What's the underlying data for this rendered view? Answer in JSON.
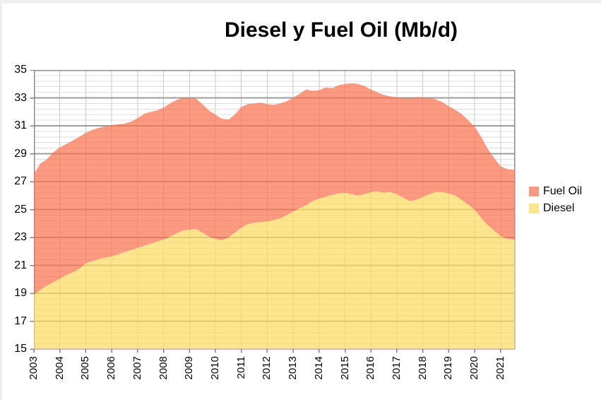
{
  "title": "Diesel y Fuel Oil (Mb/d)",
  "legend": {
    "items": [
      {
        "label": "Fuel Oil",
        "color": "#F89A80"
      },
      {
        "label": "Diesel",
        "color": "#FDE58D"
      }
    ]
  },
  "axes": {
    "y_ticks": [
      "35",
      "33",
      "31",
      "29",
      "27",
      "25",
      "23",
      "21",
      "19",
      "17",
      "15"
    ],
    "x_ticks": [
      "2003",
      "2004",
      "2005",
      "2006",
      "2007",
      "2008",
      "2009",
      "2010",
      "2011",
      "2012",
      "2013",
      "2014",
      "2015",
      "2016",
      "2017",
      "2018",
      "2019",
      "2020",
      "2021"
    ]
  },
  "chart_data": {
    "type": "area",
    "stacked": true,
    "title": "Diesel y Fuel Oil (Mb/d)",
    "xlabel": "",
    "ylabel": "",
    "ylim": [
      15,
      35
    ],
    "y_major_step": 2,
    "y_minor_step": 0.4,
    "x_start": 2003.0,
    "x_step": 0.25,
    "x_axis_end": 2021.55,
    "grid": true,
    "legend_position": "right",
    "colors": {
      "grid_minor": "#DFDFDF",
      "grid_major": "#9B9B9B",
      "grid_vertical": "#C9C9C9",
      "axis_border": "#8C8C8C",
      "tick": "#808080"
    },
    "series": [
      {
        "name": "Diesel",
        "swatch_color": "#FDE58D",
        "fill_rgb": "252,219,97",
        "fill_opacity": 0.72,
        "values": [
          18.9,
          19.25,
          19.55,
          19.8,
          20.05,
          20.3,
          20.5,
          20.75,
          21.15,
          21.3,
          21.45,
          21.55,
          21.65,
          21.8,
          21.95,
          22.1,
          22.25,
          22.4,
          22.55,
          22.7,
          22.85,
          23.05,
          23.3,
          23.5,
          23.55,
          23.6,
          23.35,
          23.05,
          22.9,
          22.8,
          23.0,
          23.35,
          23.7,
          23.95,
          24.05,
          24.1,
          24.15,
          24.25,
          24.35,
          24.6,
          24.85,
          25.1,
          25.3,
          25.6,
          25.8,
          25.9,
          26.05,
          26.15,
          26.2,
          26.1,
          26.0,
          26.1,
          26.25,
          26.3,
          26.2,
          26.25,
          26.1,
          25.85,
          25.6,
          25.7,
          25.9,
          26.1,
          26.25,
          26.25,
          26.15,
          26.0,
          25.7,
          25.35,
          25.0,
          24.4,
          23.9,
          23.5,
          23.1,
          22.9,
          22.85
        ]
      },
      {
        "name": "Fuel Oil",
        "swatch_color": "#F89A80",
        "fill_rgb": "249,115,79",
        "fill_opacity": 0.72,
        "values": [
          8.65,
          9.05,
          9.05,
          9.3,
          9.4,
          9.4,
          9.45,
          9.45,
          9.35,
          9.4,
          9.4,
          9.4,
          9.4,
          9.3,
          9.2,
          9.2,
          9.3,
          9.45,
          9.45,
          9.4,
          9.45,
          9.55,
          9.55,
          9.5,
          9.45,
          9.35,
          9.2,
          9.05,
          8.9,
          8.7,
          8.45,
          8.45,
          8.65,
          8.6,
          8.55,
          8.55,
          8.4,
          8.25,
          8.25,
          8.15,
          8.15,
          8.2,
          8.3,
          7.9,
          7.75,
          7.85,
          7.65,
          7.75,
          7.8,
          7.95,
          8.0,
          7.75,
          7.35,
          7.1,
          7.0,
          6.85,
          6.95,
          7.15,
          7.35,
          7.35,
          7.1,
          6.9,
          6.65,
          6.45,
          6.25,
          6.15,
          6.15,
          6.05,
          5.95,
          5.8,
          5.45,
          5.2,
          5.0,
          5.0,
          5.0
        ]
      }
    ]
  }
}
